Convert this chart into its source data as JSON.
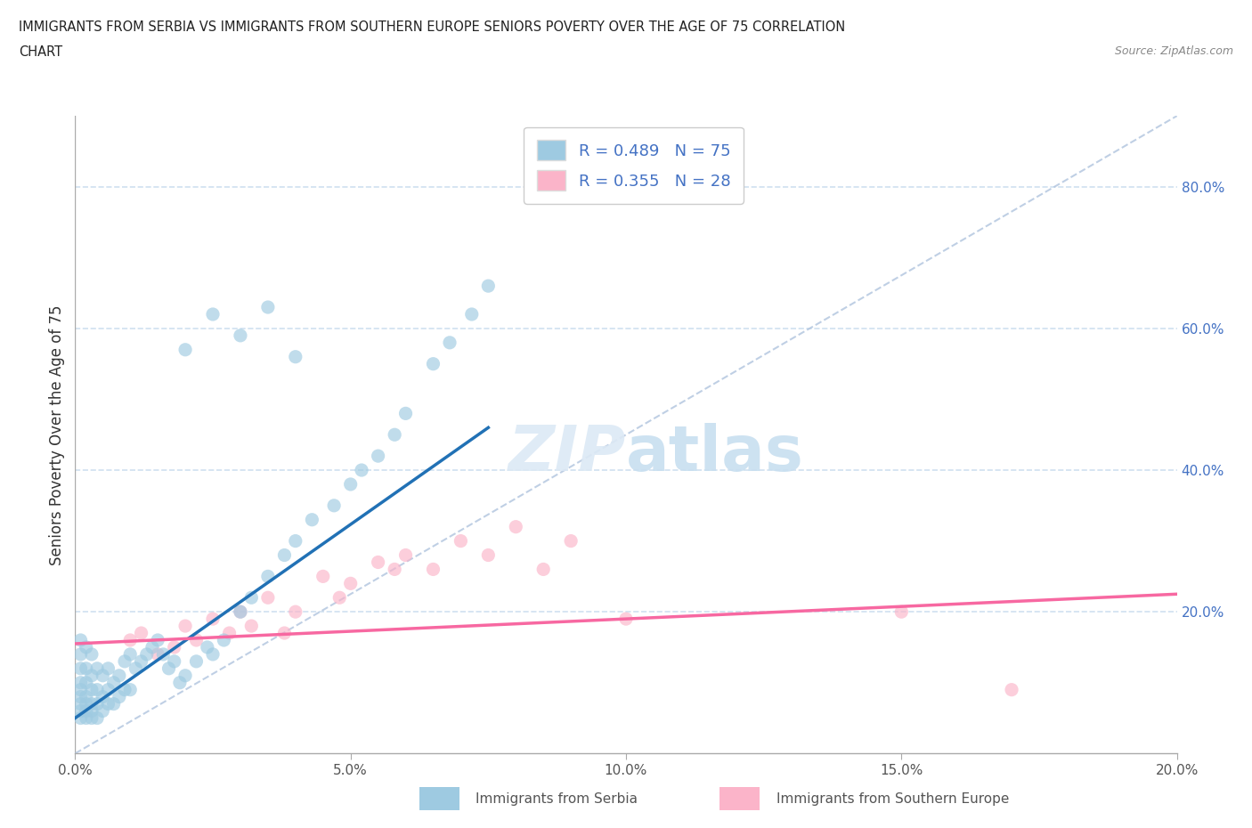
{
  "title_line1": "IMMIGRANTS FROM SERBIA VS IMMIGRANTS FROM SOUTHERN EUROPE SENIORS POVERTY OVER THE AGE OF 75 CORRELATION",
  "title_line2": "CHART",
  "source_text": "Source: ZipAtlas.com",
  "ylabel": "Seniors Poverty Over the Age of 75",
  "legend_label1": "Immigrants from Serbia",
  "legend_label2": "Immigrants from Southern Europe",
  "r1": 0.489,
  "n1": 75,
  "r2": 0.355,
  "n2": 28,
  "xlim": [
    0.0,
    0.2
  ],
  "ylim": [
    0.0,
    0.9
  ],
  "xticks": [
    0.0,
    0.05,
    0.1,
    0.15,
    0.2
  ],
  "yticks_right": [
    0.2,
    0.4,
    0.6,
    0.8
  ],
  "color_serbia": "#9ecae1",
  "color_south_europe": "#fbb4c9",
  "color_serbia_line": "#2171b5",
  "color_south_europe_line": "#f768a1",
  "color_ref_line": "#b0c4de",
  "background_color": "#ffffff",
  "grid_color": "#d0e0f0",
  "serbia_x": [
    0.001,
    0.001,
    0.001,
    0.001,
    0.001,
    0.001,
    0.001,
    0.001,
    0.001,
    0.002,
    0.002,
    0.002,
    0.002,
    0.002,
    0.002,
    0.002,
    0.003,
    0.003,
    0.003,
    0.003,
    0.003,
    0.003,
    0.004,
    0.004,
    0.004,
    0.004,
    0.005,
    0.005,
    0.005,
    0.006,
    0.006,
    0.006,
    0.007,
    0.007,
    0.008,
    0.008,
    0.009,
    0.009,
    0.01,
    0.01,
    0.011,
    0.012,
    0.013,
    0.014,
    0.015,
    0.016,
    0.017,
    0.018,
    0.019,
    0.02,
    0.022,
    0.024,
    0.025,
    0.027,
    0.03,
    0.032,
    0.035,
    0.038,
    0.04,
    0.043,
    0.047,
    0.05,
    0.052,
    0.055,
    0.058,
    0.06,
    0.065,
    0.068,
    0.072,
    0.075,
    0.02,
    0.025,
    0.03,
    0.035,
    0.04
  ],
  "serbia_y": [
    0.05,
    0.06,
    0.07,
    0.08,
    0.09,
    0.1,
    0.12,
    0.14,
    0.16,
    0.05,
    0.06,
    0.07,
    0.08,
    0.1,
    0.12,
    0.15,
    0.05,
    0.06,
    0.07,
    0.09,
    0.11,
    0.14,
    0.05,
    0.07,
    0.09,
    0.12,
    0.06,
    0.08,
    0.11,
    0.07,
    0.09,
    0.12,
    0.07,
    0.1,
    0.08,
    0.11,
    0.09,
    0.13,
    0.09,
    0.14,
    0.12,
    0.13,
    0.14,
    0.15,
    0.16,
    0.14,
    0.12,
    0.13,
    0.1,
    0.11,
    0.13,
    0.15,
    0.14,
    0.16,
    0.2,
    0.22,
    0.25,
    0.28,
    0.3,
    0.33,
    0.35,
    0.38,
    0.4,
    0.42,
    0.45,
    0.48,
    0.55,
    0.58,
    0.62,
    0.66,
    0.57,
    0.62,
    0.59,
    0.63,
    0.56
  ],
  "south_europe_x": [
    0.01,
    0.012,
    0.015,
    0.018,
    0.02,
    0.022,
    0.025,
    0.028,
    0.03,
    0.032,
    0.035,
    0.038,
    0.04,
    0.045,
    0.048,
    0.05,
    0.055,
    0.058,
    0.06,
    0.065,
    0.07,
    0.075,
    0.08,
    0.085,
    0.09,
    0.1,
    0.15,
    0.17
  ],
  "south_europe_y": [
    0.16,
    0.17,
    0.14,
    0.15,
    0.18,
    0.16,
    0.19,
    0.17,
    0.2,
    0.18,
    0.22,
    0.17,
    0.2,
    0.25,
    0.22,
    0.24,
    0.27,
    0.26,
    0.28,
    0.26,
    0.3,
    0.28,
    0.32,
    0.26,
    0.3,
    0.19,
    0.2,
    0.09
  ],
  "serbia_trendline_x0": 0.0,
  "serbia_trendline_y0": 0.05,
  "serbia_trendline_x1": 0.075,
  "serbia_trendline_y1": 0.46,
  "south_trendline_x0": 0.0,
  "south_trendline_y0": 0.155,
  "south_trendline_x1": 0.2,
  "south_trendline_y1": 0.225
}
